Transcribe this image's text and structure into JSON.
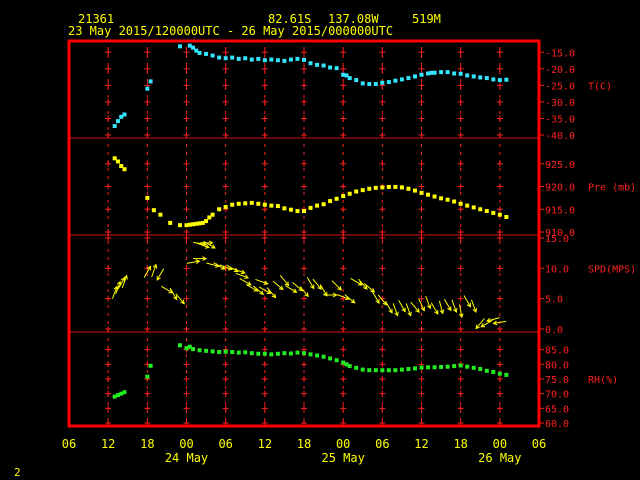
{
  "header": {
    "station": "21361",
    "lat": "82.61S",
    "lon": "137.08W",
    "elev": "519M",
    "period": "23 May 2015/120000UTC - 26 May 2015/000000UTC"
  },
  "footer": {
    "page": "2"
  },
  "chart_data": {
    "type": "scatter",
    "x_axis": {
      "unit": "hours since 2015-05-23 06:00 UTC",
      "range": [
        0,
        72
      ],
      "tick_values": [
        0,
        6,
        12,
        18,
        24,
        30,
        36,
        42,
        48,
        54,
        60,
        66,
        72
      ],
      "tick_labels": [
        "06",
        "12",
        "18",
        "00",
        "06",
        "12",
        "18",
        "00",
        "06",
        "12",
        "18",
        "00",
        "06"
      ],
      "date_labels": [
        {
          "x": 18,
          "label": "24 May"
        },
        {
          "x": 42,
          "label": "25 May"
        },
        {
          "x": 66,
          "label": "26 May"
        }
      ]
    },
    "panels": [
      {
        "id": "temperature",
        "label": "T(C)",
        "color": "#33e5ff",
        "marker": "square",
        "ylim": [
          -40,
          -12.5
        ],
        "tick_values": [
          -15,
          -20,
          -25,
          -30,
          -35,
          -40
        ],
        "tick_labels": [
          "-15.0",
          "-20.0",
          "-25.0",
          "-30.0",
          "-35.0",
          "-40.0"
        ],
        "label_at": -25,
        "points": [
          [
            7,
            -37.3
          ],
          [
            7.5,
            -35.8
          ],
          [
            8,
            -34.5
          ],
          [
            8.5,
            -33.8
          ],
          [
            12,
            -26.0
          ],
          [
            12.5,
            -23.8
          ],
          [
            17,
            -13.2
          ],
          [
            18.5,
            -13.0
          ],
          [
            19,
            -13.6
          ],
          [
            19.5,
            -14.5
          ],
          [
            20,
            -15.2
          ],
          [
            21,
            -15.5
          ],
          [
            22,
            -16.0
          ],
          [
            23,
            -16.6
          ],
          [
            24,
            -16.8
          ],
          [
            25,
            -16.6
          ],
          [
            26,
            -17.0
          ],
          [
            27,
            -16.8
          ],
          [
            28,
            -17.2
          ],
          [
            29,
            -17.0
          ],
          [
            30,
            -17.4
          ],
          [
            31,
            -17.2
          ],
          [
            32,
            -17.4
          ],
          [
            33,
            -17.6
          ],
          [
            34,
            -17.2
          ],
          [
            35,
            -17.0
          ],
          [
            36,
            -17.3
          ],
          [
            37,
            -18.3
          ],
          [
            38,
            -18.8
          ],
          [
            39,
            -19.0
          ],
          [
            40,
            -19.6
          ],
          [
            41,
            -19.8
          ],
          [
            42,
            -21.8
          ],
          [
            42.5,
            -22.0
          ],
          [
            43,
            -22.8
          ],
          [
            44,
            -23.4
          ],
          [
            45,
            -24.4
          ],
          [
            46,
            -24.6
          ],
          [
            47,
            -24.6
          ],
          [
            48,
            -24.2
          ],
          [
            49,
            -24.0
          ],
          [
            50,
            -23.6
          ],
          [
            51,
            -23.2
          ],
          [
            52,
            -22.8
          ],
          [
            53,
            -22.3
          ],
          [
            54,
            -21.8
          ],
          [
            55,
            -21.4
          ],
          [
            55.5,
            -21.2
          ],
          [
            56,
            -21.2
          ],
          [
            57,
            -21.0
          ],
          [
            58,
            -21.0
          ],
          [
            59,
            -21.4
          ],
          [
            60,
            -21.5
          ],
          [
            61,
            -22.0
          ],
          [
            62,
            -22.3
          ],
          [
            63,
            -22.6
          ],
          [
            64,
            -22.8
          ],
          [
            65,
            -23.2
          ],
          [
            66,
            -23.4
          ],
          [
            67,
            -23.3
          ]
        ]
      },
      {
        "id": "pressure",
        "label": "Pre (mb)",
        "color": "#ffff00",
        "marker": "square",
        "ylim": [
          910,
          930
        ],
        "tick_values": [
          925,
          920,
          915,
          910
        ],
        "tick_labels": [
          "925.0",
          "920.0",
          "915.0",
          "910.0"
        ],
        "label_at": 920,
        "points": [
          [
            7,
            926.2
          ],
          [
            7.5,
            925.5
          ],
          [
            8,
            924.5
          ],
          [
            8.5,
            923.8
          ],
          [
            12,
            917.5
          ],
          [
            13,
            914.8
          ],
          [
            14,
            913.8
          ],
          [
            15.5,
            912.0
          ],
          [
            17,
            911.5
          ],
          [
            18,
            911.5
          ],
          [
            18.5,
            911.6
          ],
          [
            19,
            911.7
          ],
          [
            19.5,
            911.8
          ],
          [
            20,
            911.9
          ],
          [
            20.5,
            912.0
          ],
          [
            21,
            912.4
          ],
          [
            21.5,
            913.2
          ],
          [
            22,
            913.8
          ],
          [
            23,
            915.0
          ],
          [
            24,
            915.5
          ],
          [
            25,
            916.0
          ],
          [
            26,
            916.2
          ],
          [
            27,
            916.3
          ],
          [
            28,
            916.4
          ],
          [
            29,
            916.2
          ],
          [
            30,
            916.0
          ],
          [
            31,
            915.8
          ],
          [
            32,
            915.7
          ],
          [
            33,
            915.2
          ],
          [
            34,
            914.9
          ],
          [
            35,
            914.6
          ],
          [
            36,
            914.6
          ],
          [
            37,
            915.3
          ],
          [
            38,
            915.8
          ],
          [
            39,
            916.1
          ],
          [
            40,
            916.8
          ],
          [
            41,
            917.3
          ],
          [
            42,
            917.9
          ],
          [
            43,
            918.4
          ],
          [
            44,
            918.9
          ],
          [
            45,
            919.2
          ],
          [
            46,
            919.5
          ],
          [
            47,
            919.7
          ],
          [
            48,
            919.8
          ],
          [
            49,
            919.9
          ],
          [
            50,
            919.9
          ],
          [
            51,
            919.8
          ],
          [
            52,
            919.5
          ],
          [
            53,
            919.1
          ],
          [
            54,
            918.6
          ],
          [
            55,
            918.2
          ],
          [
            56,
            917.8
          ],
          [
            57,
            917.4
          ],
          [
            58,
            917.1
          ],
          [
            59,
            916.7
          ],
          [
            60,
            916.2
          ],
          [
            61,
            915.8
          ],
          [
            62,
            915.4
          ],
          [
            63,
            915.0
          ],
          [
            64,
            914.6
          ],
          [
            65,
            914.2
          ],
          [
            66,
            913.8
          ],
          [
            67,
            913.3
          ]
        ]
      },
      {
        "id": "wind",
        "label": "SPD(MPS)",
        "color": "#ffff00",
        "marker": "wind-arrow",
        "ylim": [
          0,
          15
        ],
        "tick_values": [
          15,
          10,
          5,
          0
        ],
        "tick_labels": [
          "15.0",
          "10.0",
          "5.0",
          "0.0"
        ],
        "label_at": 10,
        "points": [
          [
            7,
            6.0,
            200
          ],
          [
            7.5,
            6.8,
            200
          ],
          [
            8,
            7.5,
            210
          ],
          [
            8.5,
            7.8,
            200
          ],
          [
            12,
            9.4,
            210
          ],
          [
            13,
            9.6,
            200
          ],
          [
            14,
            9.0,
            30
          ],
          [
            15,
            6.5,
            300
          ],
          [
            16,
            5.8,
            330
          ],
          [
            17,
            5.0,
            320
          ],
          [
            19,
            11.0,
            260
          ],
          [
            20,
            11.6,
            270
          ],
          [
            20,
            14.1,
            280
          ],
          [
            20.5,
            13.8,
            290
          ],
          [
            21,
            14.2,
            270
          ],
          [
            21.5,
            13.9,
            300
          ],
          [
            22,
            10.6,
            285
          ],
          [
            23,
            10.4,
            300
          ],
          [
            24,
            10.2,
            290
          ],
          [
            25,
            10.0,
            300
          ],
          [
            26,
            9.6,
            290
          ],
          [
            26.5,
            8.8,
            290
          ],
          [
            27,
            7.8,
            300
          ],
          [
            28,
            6.8,
            300
          ],
          [
            29,
            6.4,
            310
          ],
          [
            29.5,
            7.8,
            290
          ],
          [
            30,
            6.4,
            300
          ],
          [
            31,
            6.0,
            320
          ],
          [
            32,
            7.2,
            310
          ],
          [
            33,
            8.0,
            320
          ],
          [
            34,
            6.6,
            300
          ],
          [
            35,
            7.0,
            310
          ],
          [
            36,
            6.2,
            320
          ],
          [
            37,
            7.6,
            330
          ],
          [
            38,
            7.4,
            320
          ],
          [
            39,
            6.4,
            330
          ],
          [
            40,
            5.6,
            270
          ],
          [
            41,
            7.2,
            315
          ],
          [
            42,
            5.3,
            290
          ],
          [
            43,
            5.0,
            310
          ],
          [
            44,
            7.8,
            300
          ],
          [
            45,
            7.4,
            320
          ],
          [
            46,
            6.8,
            310
          ],
          [
            47,
            5.2,
            330
          ],
          [
            48,
            4.8,
            320
          ],
          [
            49,
            3.6,
            330
          ],
          [
            50,
            3.2,
            340
          ],
          [
            51,
            3.8,
            330
          ],
          [
            52,
            3.2,
            340
          ],
          [
            53,
            3.6,
            320
          ],
          [
            54,
            4.0,
            335
          ],
          [
            55,
            4.4,
            340
          ],
          [
            56,
            3.4,
            330
          ],
          [
            57,
            3.6,
            345
          ],
          [
            58,
            4.0,
            330
          ],
          [
            59,
            3.8,
            340
          ],
          [
            60,
            3.0,
            350
          ],
          [
            61,
            4.6,
            330
          ],
          [
            62,
            3.8,
            340
          ],
          [
            63,
            0.9,
            40
          ],
          [
            64,
            0.9,
            60
          ],
          [
            65,
            1.6,
            75
          ],
          [
            66,
            1.1,
            80
          ]
        ]
      },
      {
        "id": "humidity",
        "label": "RH(%)",
        "color": "#22ee22",
        "marker": "square",
        "ylim": [
          60,
          90
        ],
        "tick_values": [
          85,
          80,
          75,
          70,
          65,
          60
        ],
        "tick_labels": [
          "85.0",
          "80.0",
          "75.0",
          "70.0",
          "65.0",
          "60.0"
        ],
        "label_at": 75,
        "points": [
          [
            7,
            69.0
          ],
          [
            7.5,
            69.5
          ],
          [
            8,
            70.0
          ],
          [
            8.5,
            70.5
          ],
          [
            12,
            75.8
          ],
          [
            12.5,
            79.5
          ],
          [
            17,
            86.5
          ],
          [
            18,
            85.5
          ],
          [
            18.5,
            86.0
          ],
          [
            19,
            85.2
          ],
          [
            20,
            84.8
          ],
          [
            21,
            84.6
          ],
          [
            22,
            84.4
          ],
          [
            23,
            84.2
          ],
          [
            24,
            84.3
          ],
          [
            25,
            84.2
          ],
          [
            26,
            84.0
          ],
          [
            27,
            84.1
          ],
          [
            28,
            83.8
          ],
          [
            29,
            83.6
          ],
          [
            30,
            83.6
          ],
          [
            31,
            83.4
          ],
          [
            32,
            83.6
          ],
          [
            33,
            83.8
          ],
          [
            34,
            83.7
          ],
          [
            35,
            84.0
          ],
          [
            36,
            83.8
          ],
          [
            37,
            83.4
          ],
          [
            38,
            83.0
          ],
          [
            39,
            82.6
          ],
          [
            40,
            82.0
          ],
          [
            41,
            81.4
          ],
          [
            42,
            80.6
          ],
          [
            42.5,
            80.0
          ],
          [
            43,
            79.4
          ],
          [
            44,
            78.8
          ],
          [
            45,
            78.2
          ],
          [
            46,
            78.0
          ],
          [
            47,
            78.0
          ],
          [
            48,
            78.0
          ],
          [
            49,
            78.0
          ],
          [
            50,
            78.0
          ],
          [
            51,
            78.2
          ],
          [
            52,
            78.4
          ],
          [
            53,
            78.6
          ],
          [
            54,
            78.9
          ],
          [
            55,
            79.0
          ],
          [
            56,
            79.0
          ],
          [
            57,
            79.1
          ],
          [
            58,
            79.2
          ],
          [
            59,
            79.4
          ],
          [
            60,
            79.6
          ],
          [
            61,
            79.2
          ],
          [
            62,
            78.8
          ],
          [
            63,
            78.4
          ],
          [
            64,
            77.8
          ],
          [
            65,
            77.4
          ],
          [
            66,
            76.8
          ],
          [
            67,
            76.4
          ]
        ]
      }
    ]
  }
}
